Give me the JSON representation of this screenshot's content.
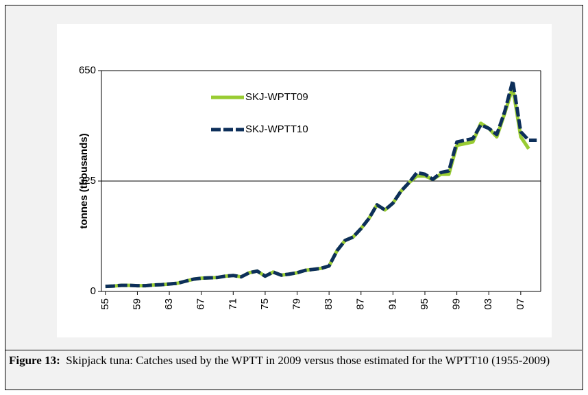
{
  "chart_data": {
    "type": "line",
    "y_label": "tonnes (thousands)",
    "categories": [
      "55",
      null,
      null,
      null,
      "59",
      null,
      null,
      null,
      "63",
      null,
      null,
      null,
      "67",
      null,
      null,
      null,
      "71",
      null,
      null,
      null,
      "75",
      null,
      null,
      null,
      "79",
      null,
      null,
      null,
      "83",
      null,
      null,
      null,
      "87",
      null,
      null,
      null,
      "91",
      null,
      null,
      null,
      "95",
      null,
      null,
      null,
      "99",
      null,
      null,
      null,
      "03",
      null,
      null,
      null,
      "07",
      null,
      null
    ],
    "series": [
      {
        "name": "SKJ-WPTT09",
        "color": "#99cc33",
        "dash": false,
        "values": [
          15,
          16,
          18,
          18,
          17,
          17,
          19,
          20,
          22,
          24,
          30,
          36,
          39,
          40,
          41,
          45,
          47,
          43,
          55,
          60,
          45,
          57,
          48,
          51,
          55,
          62,
          65,
          68,
          75,
          120,
          150,
          160,
          185,
          215,
          255,
          240,
          260,
          295,
          320,
          340,
          340,
          330,
          345,
          345,
          430,
          435,
          440,
          495,
          480,
          455,
          525,
          600,
          455,
          420,
          null
        ]
      },
      {
        "name": "SKJ-WPTT10",
        "color": "#0d2f5a",
        "dash": true,
        "values": [
          15,
          16,
          18,
          18,
          17,
          17,
          19,
          20,
          22,
          24,
          30,
          36,
          39,
          40,
          41,
          45,
          47,
          43,
          55,
          60,
          45,
          57,
          48,
          51,
          55,
          62,
          65,
          68,
          75,
          120,
          150,
          160,
          185,
          215,
          255,
          240,
          260,
          295,
          320,
          350,
          345,
          330,
          350,
          355,
          440,
          445,
          450,
          490,
          480,
          462,
          530,
          620,
          470,
          445,
          445
        ]
      }
    ],
    "ylim": [
      0,
      650
    ],
    "yticks": [
      0,
      325,
      650
    ],
    "grid": true
  },
  "caption": {
    "label": "Figure 13:",
    "text": "Skipjack tuna: Catches used by the WPTT in 2009 versus those estimated for the WPTT10 (1955-2009)"
  }
}
